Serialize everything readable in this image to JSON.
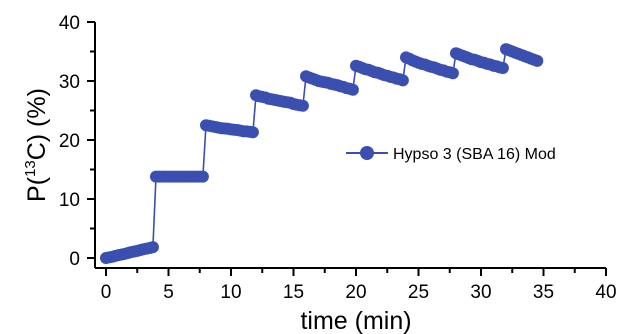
{
  "chart_data": {
    "type": "line",
    "xlabel": "time (min)",
    "ylabel_main": "P(",
    "ylabel_sup": "13",
    "ylabel_tail": "C) (%)",
    "xlim": [
      0,
      40
    ],
    "ylim": [
      0,
      40
    ],
    "x_ticks": [
      0,
      5,
      10,
      15,
      20,
      25,
      30,
      35,
      40
    ],
    "y_ticks": [
      0,
      10,
      20,
      30,
      40
    ],
    "x_minor_step": 2.5,
    "y_minor_step": 5,
    "grid": false,
    "legend_position": "center-right",
    "series": [
      {
        "name": "Hypso 3 (SBA 16) Mod",
        "color": "#3a4fb0",
        "line_color": "#3a4fb0",
        "segments": [
          [
            [
              0.0,
              0.0
            ],
            [
              0.25,
              0.1
            ],
            [
              0.5,
              0.2
            ],
            [
              0.75,
              0.35
            ],
            [
              1.0,
              0.5
            ],
            [
              1.25,
              0.6
            ],
            [
              1.5,
              0.7
            ],
            [
              1.75,
              0.85
            ],
            [
              2.0,
              1.0
            ],
            [
              2.25,
              1.1
            ],
            [
              2.5,
              1.2
            ],
            [
              2.75,
              1.35
            ],
            [
              3.0,
              1.5
            ],
            [
              3.25,
              1.6
            ],
            [
              3.5,
              1.7
            ],
            [
              3.75,
              1.85
            ]
          ],
          [
            [
              4.0,
              13.8
            ],
            [
              4.25,
              13.8
            ],
            [
              4.5,
              13.8
            ],
            [
              4.75,
              13.8
            ],
            [
              5.0,
              13.8
            ],
            [
              5.25,
              13.8
            ],
            [
              5.5,
              13.8
            ],
            [
              5.75,
              13.8
            ],
            [
              6.0,
              13.8
            ],
            [
              6.25,
              13.8
            ],
            [
              6.5,
              13.8
            ],
            [
              6.75,
              13.8
            ],
            [
              7.0,
              13.8
            ],
            [
              7.25,
              13.8
            ],
            [
              7.5,
              13.8
            ],
            [
              7.75,
              13.8
            ]
          ],
          [
            [
              8.0,
              22.5
            ],
            [
              8.25,
              22.4
            ],
            [
              8.5,
              22.3
            ],
            [
              8.75,
              22.2
            ],
            [
              9.0,
              22.1
            ],
            [
              9.25,
              22.0
            ],
            [
              9.5,
              21.95
            ],
            [
              9.75,
              21.9
            ],
            [
              10.0,
              21.8
            ],
            [
              10.25,
              21.75
            ],
            [
              10.5,
              21.7
            ],
            [
              10.75,
              21.6
            ],
            [
              11.0,
              21.5
            ],
            [
              11.25,
              21.45
            ],
            [
              11.5,
              21.4
            ],
            [
              11.75,
              21.3
            ]
          ],
          [
            [
              12.0,
              27.6
            ],
            [
              12.25,
              27.4
            ],
            [
              12.5,
              27.3
            ],
            [
              12.75,
              27.2
            ],
            [
              13.0,
              27.0
            ],
            [
              13.25,
              26.9
            ],
            [
              13.5,
              26.8
            ],
            [
              13.75,
              26.7
            ],
            [
              14.0,
              26.6
            ],
            [
              14.25,
              26.5
            ],
            [
              14.5,
              26.4
            ],
            [
              14.75,
              26.3
            ],
            [
              15.0,
              26.1
            ],
            [
              15.25,
              26.0
            ],
            [
              15.5,
              25.9
            ],
            [
              15.75,
              25.8
            ]
          ],
          [
            [
              16.0,
              30.8
            ],
            [
              16.25,
              30.6
            ],
            [
              16.5,
              30.4
            ],
            [
              16.75,
              30.2
            ],
            [
              17.0,
              30.0
            ],
            [
              17.25,
              29.9
            ],
            [
              17.5,
              29.8
            ],
            [
              17.75,
              29.7
            ],
            [
              18.0,
              29.5
            ],
            [
              18.25,
              29.4
            ],
            [
              18.5,
              29.3
            ],
            [
              18.75,
              29.1
            ],
            [
              19.0,
              29.0
            ],
            [
              19.25,
              28.8
            ],
            [
              19.5,
              28.7
            ],
            [
              19.75,
              28.5
            ]
          ],
          [
            [
              20.0,
              32.6
            ],
            [
              20.25,
              32.4
            ],
            [
              20.5,
              32.2
            ],
            [
              20.75,
              32.0
            ],
            [
              21.0,
              31.9
            ],
            [
              21.25,
              31.7
            ],
            [
              21.5,
              31.5
            ],
            [
              21.75,
              31.4
            ],
            [
              22.0,
              31.2
            ],
            [
              22.25,
              31.0
            ],
            [
              22.5,
              30.9
            ],
            [
              22.75,
              30.7
            ],
            [
              23.0,
              30.6
            ],
            [
              23.25,
              30.4
            ],
            [
              23.5,
              30.3
            ],
            [
              23.75,
              30.1
            ]
          ],
          [
            [
              24.0,
              34.0
            ],
            [
              24.25,
              33.8
            ],
            [
              24.5,
              33.5
            ],
            [
              24.75,
              33.3
            ],
            [
              25.0,
              33.1
            ],
            [
              25.25,
              32.9
            ],
            [
              25.5,
              32.8
            ],
            [
              25.75,
              32.6
            ],
            [
              26.0,
              32.4
            ],
            [
              26.25,
              32.3
            ],
            [
              26.5,
              32.1
            ],
            [
              26.75,
              31.9
            ],
            [
              27.0,
              31.8
            ],
            [
              27.25,
              31.6
            ],
            [
              27.5,
              31.5
            ],
            [
              27.75,
              31.3
            ]
          ],
          [
            [
              28.0,
              34.7
            ],
            [
              28.25,
              34.5
            ],
            [
              28.5,
              34.3
            ],
            [
              28.75,
              34.1
            ],
            [
              29.0,
              33.9
            ],
            [
              29.25,
              33.7
            ],
            [
              29.5,
              33.6
            ],
            [
              29.75,
              33.4
            ],
            [
              30.0,
              33.2
            ],
            [
              30.25,
              33.1
            ],
            [
              30.5,
              32.9
            ],
            [
              30.75,
              32.8
            ],
            [
              31.0,
              32.6
            ],
            [
              31.25,
              32.5
            ],
            [
              31.5,
              32.3
            ],
            [
              31.75,
              32.2
            ]
          ],
          [
            [
              32.0,
              35.4
            ],
            [
              32.25,
              35.2
            ],
            [
              32.5,
              35.0
            ],
            [
              32.75,
              34.8
            ],
            [
              33.0,
              34.6
            ],
            [
              33.25,
              34.4
            ],
            [
              33.5,
              34.2
            ],
            [
              33.75,
              34.0
            ],
            [
              34.0,
              33.8
            ],
            [
              34.25,
              33.6
            ],
            [
              34.5,
              33.4
            ]
          ]
        ]
      }
    ]
  }
}
